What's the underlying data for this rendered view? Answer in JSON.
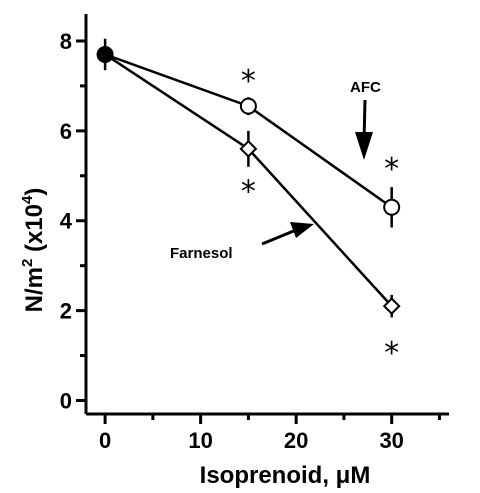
{
  "chart_data": {
    "type": "line",
    "title": "",
    "xlabel": "Isoprenoid, μM",
    "ylabel_main": "N/m",
    "ylabel_sup1": "2",
    "ylabel_paren": " (x10",
    "ylabel_sup2": "4",
    "ylabel_close": ")",
    "xlim": [
      -2,
      36
    ],
    "ylim": [
      -0.3,
      8.6
    ],
    "xticks": [
      0,
      10,
      20,
      30
    ],
    "yticks": [
      0,
      2,
      4,
      6,
      8
    ],
    "series": [
      {
        "name": "AFC",
        "marker": "circle",
        "x": [
          0,
          15,
          30
        ],
        "y": [
          7.7,
          6.55,
          4.3
        ],
        "err": [
          0.35,
          0.2,
          0.45
        ]
      },
      {
        "name": "Farnesol",
        "marker": "diamond",
        "x": [
          0,
          15,
          30
        ],
        "y": [
          7.7,
          5.6,
          2.1
        ],
        "err": [
          0.35,
          0.4,
          0.25
        ]
      }
    ],
    "control_point": {
      "x": 0,
      "y": 7.7
    },
    "significance": [
      {
        "symbol": "*",
        "x": 15,
        "y": 7.15
      },
      {
        "symbol": "*",
        "x": 15,
        "y": 4.7
      },
      {
        "symbol": "*",
        "x": 30,
        "y": 5.2
      },
      {
        "symbol": "*",
        "x": 30,
        "y": 1.1
      }
    ],
    "annotations": [
      {
        "text": "AFC",
        "target": "AFC"
      },
      {
        "text": "Farnesol",
        "target": "Farnesol"
      }
    ],
    "grid": false,
    "legend": "none"
  }
}
